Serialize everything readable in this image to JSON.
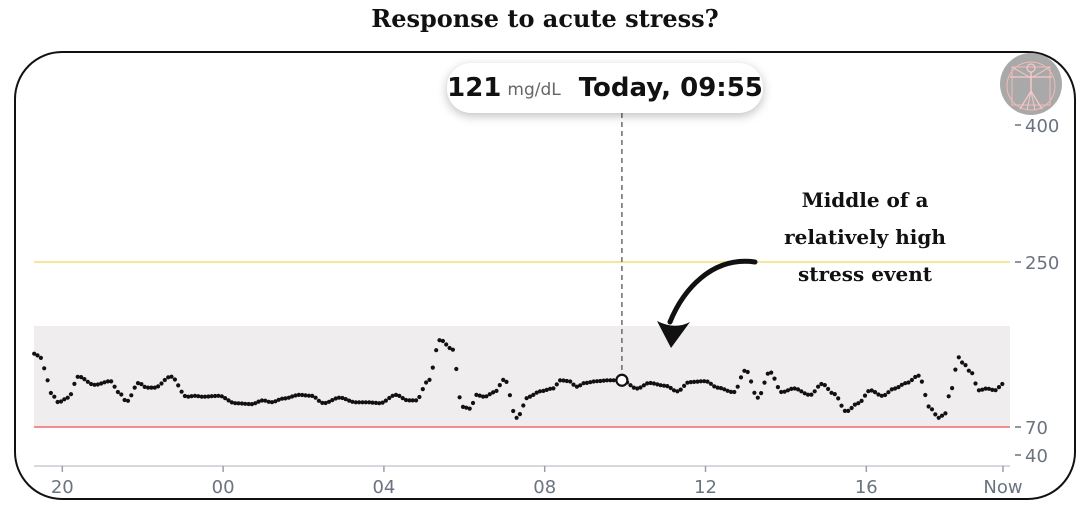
{
  "title": "Response to acute stress?",
  "tooltip": {
    "value": "121",
    "unit": "mg/dL",
    "time": "Today, 09:55"
  },
  "annotation": {
    "lines": [
      "Middle of a",
      "relatively high",
      "stress event"
    ]
  },
  "avatar": {
    "icon": "vitruvian-figure-icon"
  },
  "colors": {
    "high_line": "#f0df7c",
    "low_line": "#f26b6b",
    "target_band": "#efedee",
    "dots": "#111111"
  },
  "chart_data": {
    "type": "scatter",
    "title": "",
    "xlabel": "",
    "ylabel": "",
    "unit": "mg/dL",
    "y_ticks": [
      {
        "value": 400,
        "label": "400"
      },
      {
        "value": 250,
        "label": "250"
      },
      {
        "value": 70,
        "label": "70"
      },
      {
        "value": 40,
        "label": "40"
      }
    ],
    "x_ticks": [
      {
        "hour": -4,
        "label": "20"
      },
      {
        "hour": 0,
        "label": "00"
      },
      {
        "hour": 4,
        "label": "04"
      },
      {
        "hour": 8,
        "label": "08"
      },
      {
        "hour": 12,
        "label": "12"
      },
      {
        "hour": 16,
        "label": "16"
      },
      {
        "hour": 19.4,
        "label": "Now"
      }
    ],
    "x_range_hours": [
      -4.7,
      19.6
    ],
    "target_range": [
      70,
      180
    ],
    "high_threshold": 250,
    "low_threshold": 70,
    "highlight": {
      "hour": 9.92,
      "value": 121
    },
    "series": [
      {
        "anchors_hour": [
          -4.7,
          -4.5,
          -4.4,
          -4.25,
          -4.1,
          -3.85,
          -3.6,
          -3.2,
          -2.8,
          -2.6,
          -2.4,
          -2.1,
          -1.9,
          -1.7,
          -1.3,
          -0.9,
          -0.7,
          -0.5,
          -0.1,
          0.3,
          0.7,
          1.0,
          1.2,
          1.5,
          1.9,
          2.2,
          2.5,
          2.9,
          3.3,
          3.6,
          3.9,
          4.3,
          4.6,
          4.8,
          5.1,
          5.4,
          5.7,
          5.95,
          6.15,
          6.3,
          6.5,
          6.75,
          7.0,
          7.3,
          7.6,
          7.9,
          8.2,
          8.4,
          8.6,
          8.8,
          9.0,
          9.3,
          9.6,
          9.92,
          10.3,
          10.6,
          11.0,
          11.3,
          11.6,
          12.0,
          12.3,
          12.7,
          13.0,
          13.3,
          13.6,
          13.9,
          14.2,
          14.6,
          14.9,
          15.2,
          15.5,
          15.8,
          16.1,
          16.4,
          16.7,
          17.0,
          17.3,
          17.6,
          17.8,
          17.95,
          18.1,
          18.3,
          18.4,
          18.6,
          18.8,
          19.0,
          19.2,
          19.4
        ],
        "anchors_value": [
          150,
          145,
          123,
          105,
          97,
          102,
          125,
          116,
          120,
          108,
          98,
          118,
          113,
          113,
          125,
          103,
          104,
          103,
          104,
          96,
          95,
          99,
          97,
          101,
          105,
          104,
          96,
          102,
          97,
          97,
          96,
          105,
          99,
          99,
          120,
          165,
          155,
          92,
          90,
          105,
          103,
          108,
          122,
          80,
          103,
          109,
          112,
          121,
          120,
          114,
          118,
          120,
          121,
          121,
          112,
          118,
          115,
          109,
          119,
          120,
          113,
          108,
          132,
          102,
          130,
          108,
          112,
          105,
          117,
          106,
          87,
          96,
          110,
          104,
          112,
          118,
          126,
          90,
          80,
          84,
          110,
          146,
          140,
          130,
          110,
          112,
          110,
          117
        ]
      }
    ]
  }
}
